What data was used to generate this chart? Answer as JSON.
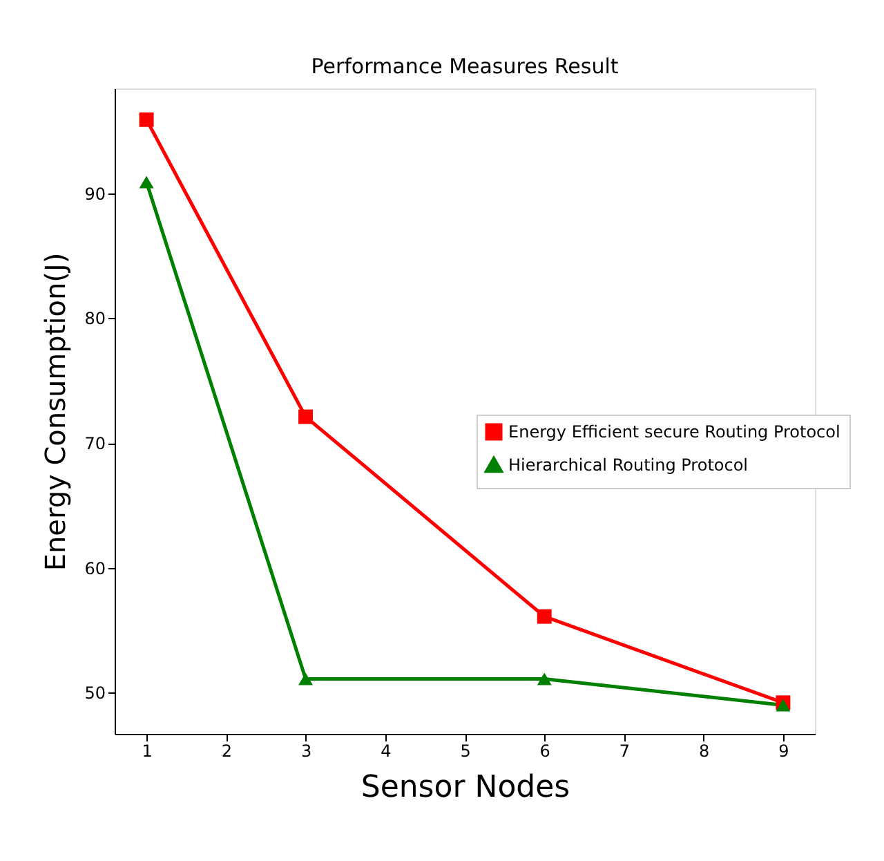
{
  "chart_data": {
    "type": "line",
    "title": "Performance Measures Result",
    "xlabel": "Sensor Nodes",
    "ylabel": "Energy Consumption(J)",
    "x": [
      1,
      3,
      6,
      9
    ],
    "series": [
      {
        "name": "Energy Efficient secure Routing Protocol",
        "color": "#ff0000",
        "marker": "square",
        "values": [
          95.9,
          72.1,
          56.1,
          49.2
        ]
      },
      {
        "name": "Hierarchical Routing Protocol",
        "color": "#008000",
        "marker": "triangle",
        "values": [
          90.9,
          51.1,
          51.1,
          49.0
        ]
      }
    ],
    "xlim": [
      0.6,
      9.4
    ],
    "xticks": [
      1,
      2,
      3,
      4,
      5,
      6,
      7,
      8,
      9
    ],
    "ylim": [
      46.7,
      98.4
    ],
    "yticks": [
      50,
      60,
      70,
      80,
      90
    ],
    "grid": false,
    "legend": "right",
    "line_style": "solid"
  }
}
